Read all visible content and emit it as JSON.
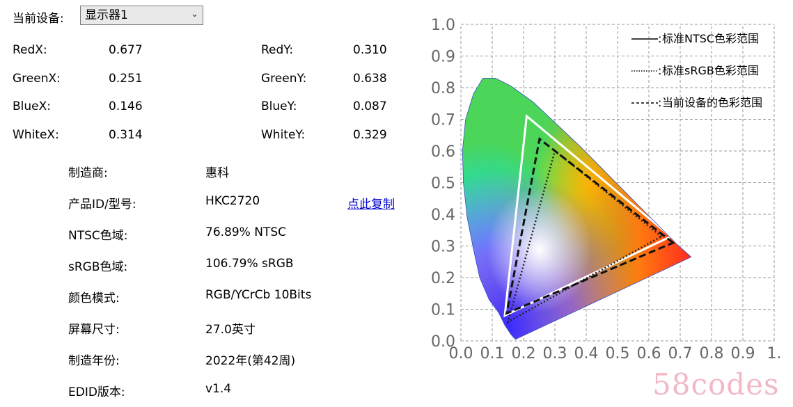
{
  "device": {
    "label": "当前设备:",
    "selected": "显示器1"
  },
  "coords": [
    {
      "xlabel": "RedX:",
      "xvalue": "0.677",
      "ylabel": "RedY:",
      "yvalue": "0.310"
    },
    {
      "xlabel": "GreenX:",
      "xvalue": "0.251",
      "ylabel": "GreenY:",
      "yvalue": "0.638"
    },
    {
      "xlabel": "BlueX:",
      "xvalue": "0.146",
      "ylabel": "BlueY:",
      "yvalue": "0.087"
    },
    {
      "xlabel": "WhiteX:",
      "xvalue": "0.314",
      "ylabel": "WhiteY:",
      "yvalue": "0.329"
    }
  ],
  "info": [
    {
      "label": "制造商:",
      "value": "惠科"
    },
    {
      "label": "产品ID/型号:",
      "value": "HKC2720"
    },
    {
      "label": "NTSC色域:",
      "value": "76.89% NTSC"
    },
    {
      "label": "sRGB色域:",
      "value": "106.79% sRGB"
    },
    {
      "label": "颜色模式:",
      "value": "RGB/YCrCb 10Bits"
    },
    {
      "label": "屏幕尺寸:",
      "value": "27.0英寸"
    },
    {
      "label": "制造年份:",
      "value": "2022年(第42周)"
    },
    {
      "label": "EDID版本:",
      "value": "v1.4"
    }
  ],
  "copy_link": "点此复制",
  "watermark": "58codes",
  "chart_data": {
    "type": "scatter",
    "xlim": [
      0,
      1
    ],
    "ylim": [
      0,
      1
    ],
    "x_ticks": [
      "0.0",
      "0.1",
      "0.2",
      "0.3",
      "0.4",
      "0.5",
      "0.6",
      "0.7",
      "0.8",
      "0.9",
      "1."
    ],
    "y_ticks": [
      "0.0",
      "0.1",
      "0.2",
      "0.3",
      "0.4",
      "0.5",
      "0.6",
      "0.7",
      "0.8",
      "0.9",
      "1.0"
    ],
    "grid": true,
    "legend_position": "top-right",
    "legend": [
      {
        "style": "solid",
        "prefix": "——:",
        "label": "标准NTSC色彩范围"
      },
      {
        "style": "dotted",
        "prefix": "·········:",
        "label": "标准sRGB色彩范围"
      },
      {
        "style": "dashed",
        "prefix": "- - - - -:",
        "label": "当前设备的色彩范围"
      }
    ],
    "triangles": [
      {
        "name": "NTSC",
        "style": "solid",
        "color": "#ffffff",
        "points": [
          [
            0.67,
            0.33
          ],
          [
            0.21,
            0.71
          ],
          [
            0.14,
            0.08
          ]
        ]
      },
      {
        "name": "sRGB",
        "style": "dotted",
        "color": "#222222",
        "points": [
          [
            0.64,
            0.33
          ],
          [
            0.3,
            0.6
          ],
          [
            0.15,
            0.06
          ]
        ]
      },
      {
        "name": "device",
        "style": "dashed",
        "color": "#111111",
        "points": [
          [
            0.677,
            0.31
          ],
          [
            0.251,
            0.638
          ],
          [
            0.146,
            0.087
          ]
        ]
      }
    ],
    "white_point": [
      0.314,
      0.329
    ]
  }
}
